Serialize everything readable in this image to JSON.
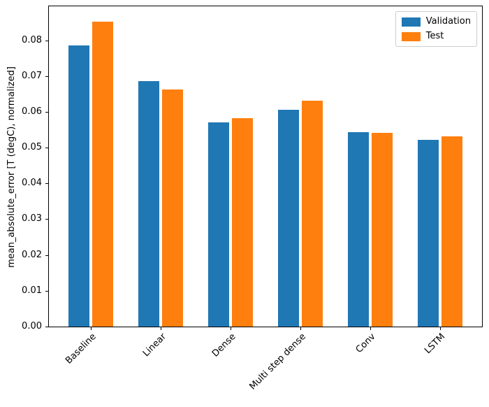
{
  "chart_data": {
    "type": "bar",
    "title": "",
    "xlabel": "",
    "ylabel": "mean_absolute_error [T (degC), normalized]",
    "categories": [
      "Baseline",
      "Linear",
      "Dense",
      "Multi step dense",
      "Conv",
      "LSTM"
    ],
    "series": [
      {
        "name": "Validation",
        "color": "#1f77b4",
        "values": [
          0.0785,
          0.0685,
          0.057,
          0.0605,
          0.0543,
          0.0521
        ]
      },
      {
        "name": "Test",
        "color": "#ff7f0e",
        "values": [
          0.0852,
          0.0662,
          0.0582,
          0.0632,
          0.0541,
          0.0531
        ]
      }
    ],
    "ylim": [
      0,
      0.0895
    ],
    "yticks": [
      0,
      0.01,
      0.02,
      0.03,
      0.04,
      0.05,
      0.06,
      0.07,
      0.08
    ],
    "ytick_labels": [
      "0.00",
      "0.01",
      "0.02",
      "0.03",
      "0.04",
      "0.05",
      "0.06",
      "0.07",
      "0.08"
    ],
    "xtick_rotation": 45,
    "grid": false,
    "legend_position": "upper right"
  }
}
